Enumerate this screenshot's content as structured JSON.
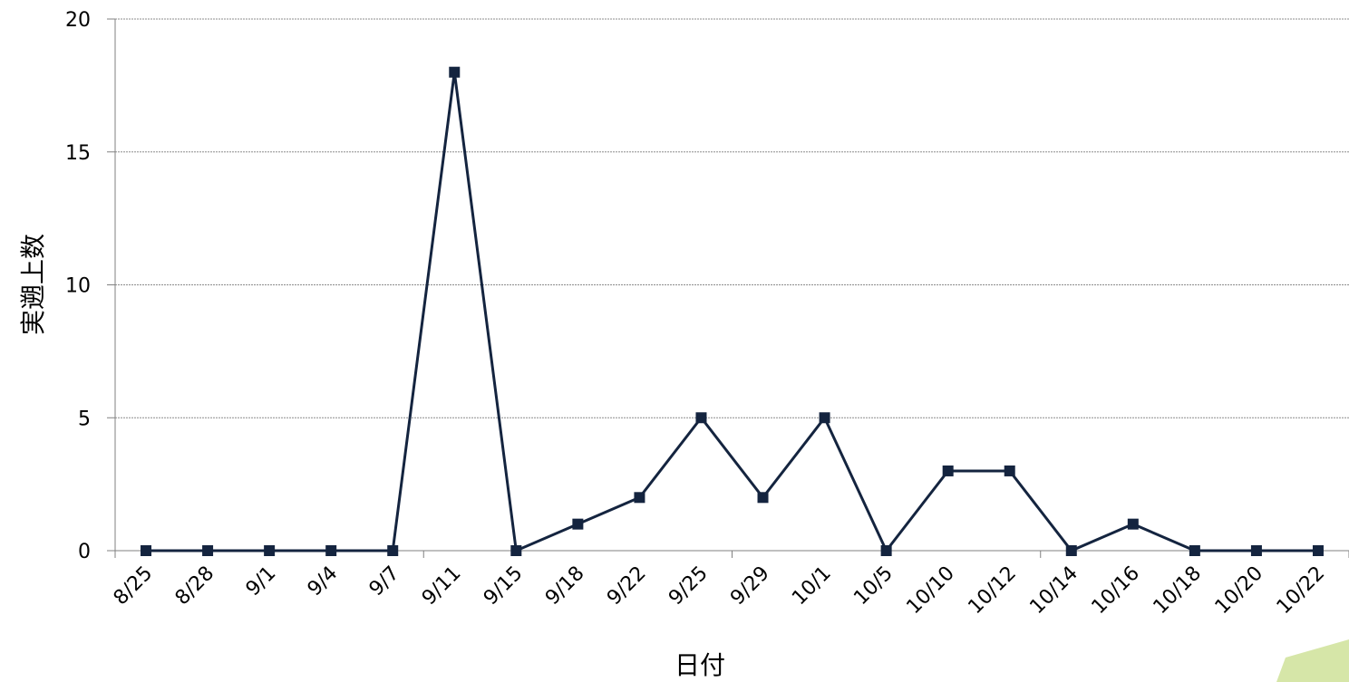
{
  "chart_data": {
    "type": "line",
    "xlabel": "日付",
    "ylabel": "実遡上数",
    "ylim": [
      0,
      20
    ],
    "yticks": [
      0,
      5,
      10,
      15,
      20
    ],
    "grid": true,
    "legend": "none",
    "categories": [
      "8/25",
      "8/28",
      "9/1",
      "9/4",
      "9/7",
      "9/11",
      "9/15",
      "9/18",
      "9/22",
      "9/25",
      "9/29",
      "10/1",
      "10/5",
      "10/10",
      "10/12",
      "10/14",
      "10/16",
      "10/18",
      "10/20",
      "10/22"
    ],
    "series": [
      {
        "values": [
          0,
          0,
          0,
          0,
          0,
          18,
          0,
          1,
          2,
          5,
          2,
          5,
          0,
          3,
          3,
          0,
          1,
          0,
          0,
          0
        ]
      }
    ],
    "colors": {
      "line": "#14243f",
      "grid": "#8c8c8c",
      "axis": "#808080",
      "corner_decoration": "#d6e6a8"
    }
  }
}
